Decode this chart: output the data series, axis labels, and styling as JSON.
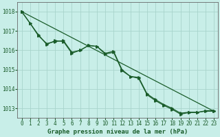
{
  "title": "Graphe pression niveau de la mer (hPa)",
  "background_color": "#c8eee8",
  "plot_background_color": "#c8eee8",
  "grid_color": "#a8d4cc",
  "line_color": "#1a5c2a",
  "x_min": -0.5,
  "x_max": 23.5,
  "y_min": 1012.5,
  "y_max": 1018.5,
  "y_ticks": [
    1013,
    1014,
    1015,
    1016,
    1017,
    1018
  ],
  "x_ticks": [
    0,
    1,
    2,
    3,
    4,
    5,
    6,
    7,
    8,
    9,
    10,
    11,
    12,
    13,
    14,
    15,
    16,
    17,
    18,
    19,
    20,
    21,
    22,
    23
  ],
  "series1_x": [
    0,
    1,
    2,
    3,
    4,
    5,
    6,
    7,
    8,
    9,
    10,
    11,
    12,
    13,
    14,
    15,
    16,
    17,
    18,
    19,
    20,
    21,
    22,
    23
  ],
  "series1_y": [
    1018.0,
    1017.4,
    1016.75,
    1016.35,
    1016.45,
    1016.5,
    1015.9,
    1016.0,
    1016.25,
    1016.2,
    1015.85,
    1015.95,
    1015.0,
    1014.65,
    1014.6,
    1013.75,
    1013.45,
    1013.2,
    1013.0,
    1012.75,
    1012.8,
    1012.8,
    1012.85,
    1012.85
  ],
  "series2_x": [
    0,
    1,
    2,
    3,
    4,
    5,
    6,
    7,
    8,
    9,
    10,
    11,
    12,
    13,
    14,
    15,
    16,
    17,
    18,
    19,
    20,
    21,
    22,
    23
  ],
  "series2_y": [
    1018.0,
    1017.4,
    1016.8,
    1016.3,
    1016.5,
    1016.45,
    1015.85,
    1016.0,
    1016.25,
    1016.2,
    1015.8,
    1015.9,
    1014.95,
    1014.65,
    1014.55,
    1013.7,
    1013.4,
    1013.15,
    1012.95,
    1012.7,
    1012.78,
    1012.78,
    1012.88,
    1012.88
  ],
  "series3_x": [
    0,
    23
  ],
  "series3_y": [
    1018.0,
    1012.85
  ],
  "marker_size": 2.5,
  "linewidth": 0.9,
  "tick_fontsize": 5.5,
  "title_fontsize": 6.5
}
